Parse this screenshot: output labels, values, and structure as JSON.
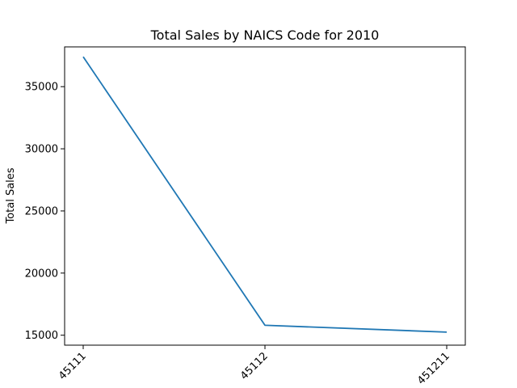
{
  "chart_data": {
    "type": "line",
    "title": "Total Sales by NAICS Code for 2010",
    "xlabel": "",
    "ylabel": "Total Sales",
    "categories": [
      "45111",
      "45112",
      "451211"
    ],
    "series": [
      {
        "values": [
          37400,
          15800,
          15250
        ],
        "color": "#1f77b4"
      }
    ],
    "ylim": [
      14200,
      38200
    ],
    "yticks": [
      15000,
      20000,
      25000,
      30000,
      35000
    ],
    "grid": false
  }
}
